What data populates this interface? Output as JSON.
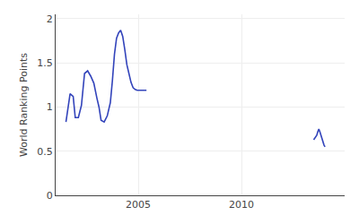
{
  "chart_data": {
    "type": "line",
    "ylabel": "World Ranking Points",
    "series": [
      {
        "color": "#3344bb",
        "x": [
          2001.5,
          2001.7,
          2001.85,
          2001.95,
          2002.1,
          2002.25,
          2002.4,
          2002.55,
          2002.7,
          2002.85,
          2003.0,
          2003.1,
          2003.2,
          2003.35,
          2003.5,
          2003.65,
          2003.75,
          2003.85,
          2003.95,
          2004.05,
          2004.15,
          2004.25,
          2004.35,
          2004.45,
          2004.55,
          2004.65,
          2004.75,
          2004.85,
          2004.95,
          2005.1,
          2005.4
        ],
        "values": [
          0.83,
          1.15,
          1.12,
          0.88,
          0.88,
          1.02,
          1.38,
          1.41,
          1.35,
          1.27,
          1.1,
          1.0,
          0.85,
          0.83,
          0.9,
          1.05,
          1.3,
          1.6,
          1.78,
          1.84,
          1.87,
          1.8,
          1.65,
          1.48,
          1.38,
          1.28,
          1.22,
          1.2,
          1.19,
          1.19,
          1.19
        ]
      },
      {
        "color": "#3344bb",
        "x": [
          2013.5,
          2013.6,
          2013.65,
          2013.7,
          2013.75,
          2013.8,
          2013.85,
          2013.9,
          2013.95,
          2014.0,
          2014.05
        ],
        "values": [
          0.63,
          0.66,
          0.68,
          0.72,
          0.75,
          0.72,
          0.68,
          0.65,
          0.6,
          0.57,
          0.55
        ]
      }
    ],
    "xlim": [
      2001.0,
      2015.0
    ],
    "ylim": [
      0,
      2.05
    ],
    "xticks": [
      2005,
      2010
    ],
    "yticks": [
      0,
      0.5,
      1.0,
      1.5,
      2.0
    ],
    "grid": true
  }
}
